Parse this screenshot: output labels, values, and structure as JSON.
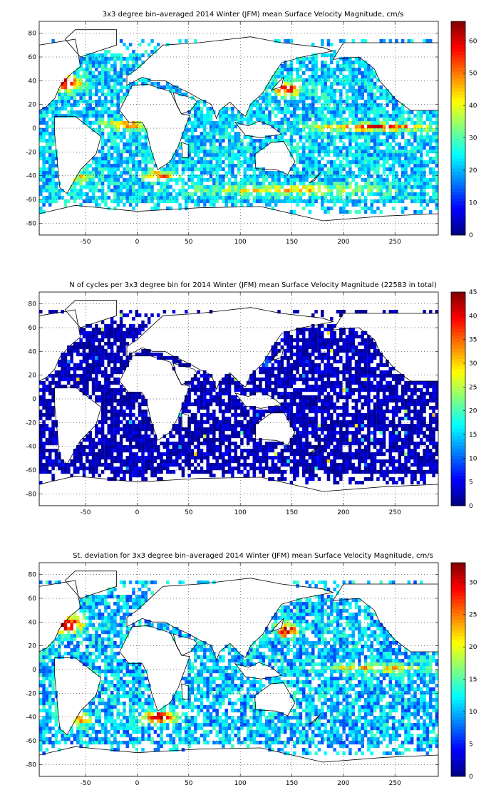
{
  "chart_data": [
    {
      "type": "heatmap",
      "title": "3x3 degree bin–averaged 2014 Winter (JFM) mean Surface Velocity Magnitude, cm/s",
      "xlabel": "",
      "ylabel": "",
      "xlim": [
        -95,
        292
      ],
      "ylim": [
        -90,
        90
      ],
      "x_ticks": [
        -50,
        0,
        50,
        100,
        150,
        200,
        250
      ],
      "y_ticks": [
        -80,
        -60,
        -40,
        -20,
        0,
        20,
        40,
        60,
        80
      ],
      "grid": true,
      "bin_size_deg": 3,
      "colormap": "jet",
      "colorbar": {
        "min": 0,
        "max": 66,
        "ticks": [
          0,
          10,
          20,
          30,
          40,
          50,
          60
        ]
      },
      "values_note": "gridded field of mean speed; ~20–30 cm/s over most bins, >50 cm/s in Gulf Stream, Kuroshio, equatorial Pacific and Agulhas/ACC bins"
    },
    {
      "type": "heatmap",
      "title": "N of cycles per 3x3 degree bin for 2014 Winter (JFM) mean Surface Velocity Magnitude (22583 in total)",
      "xlabel": "",
      "ylabel": "",
      "xlim": [
        -95,
        292
      ],
      "ylim": [
        -90,
        90
      ],
      "x_ticks": [
        -50,
        0,
        50,
        100,
        150,
        200,
        250
      ],
      "y_ticks": [
        -80,
        -60,
        -40,
        -20,
        0,
        20,
        40,
        60,
        80
      ],
      "grid": true,
      "bin_size_deg": 3,
      "colormap": "jet",
      "colorbar": {
        "min": 0,
        "max": 45,
        "ticks": [
          0,
          5,
          10,
          15,
          20,
          25,
          30,
          35,
          40,
          45
        ]
      },
      "total_cycles": 22583,
      "values_note": "mostly 1–5 cycles per bin, with isolated higher counts (up to ~40) in marginal seas"
    },
    {
      "type": "heatmap",
      "title": "St. deviation for 3x3 degree bin–averaged 2014 Winter (JFM) mean Surface Velocity Magnitude, cm/s",
      "xlabel": "",
      "ylabel": "",
      "xlim": [
        -95,
        292
      ],
      "ylim": [
        -90,
        90
      ],
      "x_ticks": [
        -50,
        0,
        50,
        100,
        150,
        200,
        250
      ],
      "y_ticks": [
        -80,
        -60,
        -40,
        -20,
        0,
        20,
        40,
        60,
        80
      ],
      "grid": true,
      "bin_size_deg": 3,
      "colormap": "jet",
      "colorbar": {
        "min": 0,
        "max": 33,
        "ticks": [
          0,
          5,
          10,
          15,
          20,
          25,
          30
        ]
      },
      "values_note": "~8–15 cm/s over most bins, >25 cm/s in western boundary currents and Agulhas retroflection"
    }
  ]
}
